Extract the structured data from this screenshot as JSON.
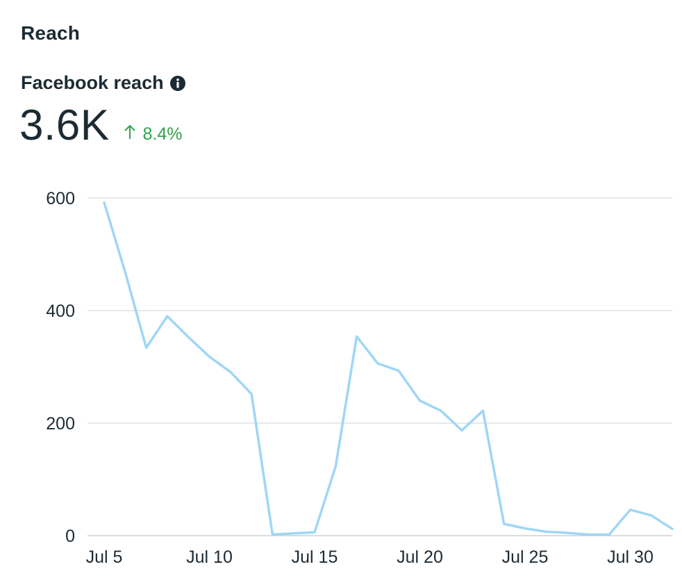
{
  "section": {
    "title": "Reach"
  },
  "metric": {
    "label": "Facebook reach",
    "value": "3.6K",
    "change": "8.4%",
    "change_color": "#31a24c",
    "info_icon": "info-icon"
  },
  "colors": {
    "line": "#9fd6f6",
    "grid": "#ced0d4",
    "text": "#1c2b33",
    "positive": "#31a24c"
  },
  "chart_data": {
    "type": "line",
    "title": "Facebook reach",
    "xlabel": "",
    "ylabel": "",
    "ylim": [
      0,
      600
    ],
    "y_ticks": [
      0,
      200,
      400,
      600
    ],
    "x_tick_labels": [
      "Jul 5",
      "Jul 10",
      "Jul 15",
      "Jul 20",
      "Jul 25",
      "Jul 30"
    ],
    "x_tick_days": [
      5,
      10,
      15,
      20,
      25,
      30
    ],
    "grid": true,
    "series": [
      {
        "name": "Facebook reach",
        "x": [
          5,
          6,
          7,
          8,
          9,
          10,
          11,
          12,
          13,
          14,
          15,
          16,
          17,
          18,
          19,
          20,
          21,
          22,
          23,
          24,
          25,
          26,
          27,
          28,
          29,
          30,
          31,
          32
        ],
        "values": [
          592,
          468,
          334,
          390,
          353,
          318,
          291,
          252,
          2,
          4,
          6,
          123,
          354,
          306,
          293,
          240,
          222,
          187,
          222,
          21,
          13,
          7,
          5,
          2,
          2,
          46,
          36,
          12
        ]
      }
    ]
  }
}
